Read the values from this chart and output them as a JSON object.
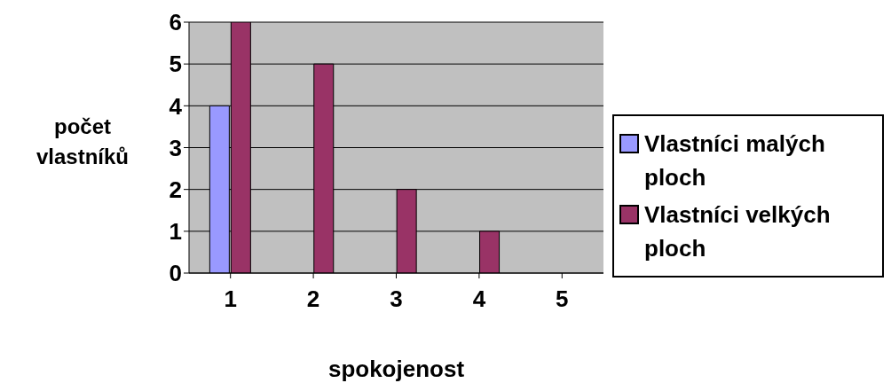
{
  "chart_data": {
    "type": "bar",
    "xlabel": "spokojenost",
    "ylabel": "počet vlastníků",
    "categories": [
      "1",
      "2",
      "3",
      "4",
      "5"
    ],
    "series": [
      {
        "name": "Vlastníci malých ploch",
        "color": "#9999ff",
        "values": [
          4,
          0,
          0,
          0,
          0
        ]
      },
      {
        "name": "Vlastníci velkých ploch",
        "color": "#993366",
        "values": [
          6,
          5,
          2,
          1,
          0
        ]
      }
    ],
    "ylim": [
      0,
      6
    ],
    "yticks": [
      0,
      1,
      2,
      3,
      4,
      5,
      6
    ],
    "grid": "y",
    "legend": "right"
  }
}
